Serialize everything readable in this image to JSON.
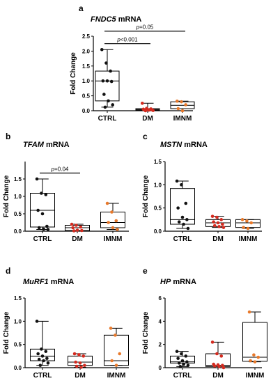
{
  "figure": {
    "panels": [
      {
        "letter": "a",
        "gene": "FNDC5",
        "suffix": " mRNA"
      },
      {
        "letter": "b",
        "gene": "TFAM",
        "suffix": " mRNA"
      },
      {
        "letter": "c",
        "gene": "MSTN",
        "suffix": " mRNA"
      },
      {
        "letter": "d",
        "gene": "MuRF1",
        "suffix": " mRNA"
      },
      {
        "letter": "e",
        "gene": "HP",
        "suffix": " mRNA"
      }
    ],
    "colors": {
      "CTRL": "#111111",
      "DM": "#d42a1f",
      "IMNM": "#e8792b"
    }
  },
  "chart_data": [
    {
      "type": "box",
      "title": "FNDC5 mRNA",
      "ylabel": "Fold Change",
      "categories": [
        "CTRL",
        "DM",
        "IMNM"
      ],
      "ylim": [
        0,
        2.5
      ],
      "yticks": [
        "0.0",
        "0.5",
        "1.0",
        "1.5",
        "2.0",
        "2.5"
      ],
      "series": [
        {
          "category": "CTRL",
          "min": 0.12,
          "q1": 0.33,
          "median": 1.0,
          "q3": 1.33,
          "max": 2.05,
          "points": [
            2.05,
            1.6,
            1.33,
            1.0,
            1.0,
            0.98,
            0.55,
            0.33,
            0.2,
            0.12
          ]
        },
        {
          "category": "DM",
          "min": 0.0,
          "q1": 0.02,
          "median": 0.04,
          "q3": 0.07,
          "max": 0.25,
          "points": [
            0.25,
            0.08,
            0.06,
            0.05,
            0.04,
            0.03,
            0.03,
            0.02,
            0.01,
            0.0
          ]
        },
        {
          "category": "IMNM",
          "min": 0.0,
          "q1": 0.07,
          "median": 0.18,
          "q3": 0.3,
          "max": 0.32,
          "points": [
            0.32,
            0.3,
            0.2,
            0.07,
            0.0
          ]
        }
      ],
      "brackets": [
        {
          "from": "CTRL",
          "to": "DM",
          "y": 2.25,
          "p": "p",
          "value": "<0.001"
        },
        {
          "from": "CTRL",
          "to": "IMNM",
          "y": 2.67,
          "p": "p",
          "value": "=0.05"
        }
      ]
    },
    {
      "type": "box",
      "title": "TFAM mRNA",
      "ylabel": "Fold Change",
      "categories": [
        "CTRL",
        "DM",
        "IMNM"
      ],
      "ylim": [
        0,
        2.0
      ],
      "yticks": [
        "0.0",
        "0.5",
        "1.0",
        "1.5"
      ],
      "series": [
        {
          "category": "CTRL",
          "min": 0.05,
          "q1": 0.12,
          "median": 0.6,
          "q3": 1.09,
          "max": 1.5,
          "points": [
            1.5,
            1.09,
            1.05,
            0.6,
            0.5,
            0.14,
            0.1,
            0.06,
            0.05
          ]
        },
        {
          "category": "DM",
          "min": 0.01,
          "q1": 0.02,
          "median": 0.1,
          "q3": 0.17,
          "max": 0.2,
          "points": [
            0.2,
            0.17,
            0.12,
            0.1,
            0.03,
            0.02,
            0.01
          ]
        },
        {
          "category": "IMNM",
          "min": 0.05,
          "q1": 0.1,
          "median": 0.25,
          "q3": 0.55,
          "max": 0.8,
          "points": [
            0.8,
            0.55,
            0.3,
            0.25,
            0.1,
            0.05
          ]
        }
      ],
      "brackets": [
        {
          "from": "CTRL",
          "to": "DM",
          "y": 1.67,
          "p": "p",
          "value": "=0.04"
        }
      ]
    },
    {
      "type": "box",
      "title": "MSTN mRNA",
      "ylabel": "Fold Change",
      "categories": [
        "CTRL",
        "DM",
        "IMNM"
      ],
      "ylim": [
        0,
        1.5
      ],
      "yticks": [
        "0.0",
        "0.5",
        "1.0",
        "1.5"
      ],
      "series": [
        {
          "category": "CTRL",
          "min": 0.06,
          "q1": 0.15,
          "median": 0.25,
          "q3": 0.92,
          "max": 1.08,
          "points": [
            1.08,
            1.0,
            0.6,
            0.5,
            0.3,
            0.25,
            0.2,
            0.15,
            0.06
          ]
        },
        {
          "category": "DM",
          "min": 0.08,
          "q1": 0.1,
          "median": 0.18,
          "q3": 0.25,
          "max": 0.32,
          "points": [
            0.32,
            0.3,
            0.25,
            0.2,
            0.18,
            0.15,
            0.12,
            0.1,
            0.08
          ]
        },
        {
          "category": "IMNM",
          "min": 0.06,
          "q1": 0.08,
          "median": 0.18,
          "q3": 0.25,
          "max": 0.25,
          "points": [
            0.25,
            0.22,
            0.18,
            0.08,
            0.06
          ]
        }
      ]
    },
    {
      "type": "box",
      "title": "MuRF1 mRNA",
      "ylabel": "Fold Change",
      "categories": [
        "CTRL",
        "DM",
        "IMNM"
      ],
      "ylim": [
        0,
        1.5
      ],
      "yticks": [
        "0.0",
        "0.5",
        "1.0",
        "1.5"
      ],
      "series": [
        {
          "category": "CTRL",
          "min": 0.05,
          "q1": 0.15,
          "median": 0.25,
          "q3": 0.4,
          "max": 1.0,
          "points": [
            1.0,
            0.4,
            0.35,
            0.3,
            0.25,
            0.2,
            0.18,
            0.15,
            0.1,
            0.05
          ]
        },
        {
          "category": "DM",
          "min": 0.01,
          "q1": 0.05,
          "median": 0.12,
          "q3": 0.25,
          "max": 0.3,
          "points": [
            0.3,
            0.28,
            0.25,
            0.12,
            0.1,
            0.05,
            0.03,
            0.01
          ]
        },
        {
          "category": "IMNM",
          "min": 0.05,
          "q1": 0.05,
          "median": 0.15,
          "q3": 0.7,
          "max": 0.85,
          "points": [
            0.85,
            0.7,
            0.3,
            0.15,
            0.05
          ]
        }
      ]
    },
    {
      "type": "box",
      "title": "HP mRNA",
      "ylabel": "Fold Change",
      "categories": [
        "CTRL",
        "DM",
        "IMNM"
      ],
      "ylim": [
        0,
        6
      ],
      "yticks": [
        "0",
        "2",
        "4",
        "6"
      ],
      "series": [
        {
          "category": "CTRL",
          "min": 0.1,
          "q1": 0.4,
          "median": 0.5,
          "q3": 1.0,
          "max": 1.4,
          "points": [
            1.4,
            1.2,
            1.0,
            0.8,
            0.6,
            0.5,
            0.4,
            0.3,
            0.2,
            0.1
          ]
        },
        {
          "category": "DM",
          "min": 0.0,
          "q1": 0.1,
          "median": 0.2,
          "q3": 1.2,
          "max": 2.2,
          "points": [
            2.2,
            1.2,
            1.0,
            0.3,
            0.25,
            0.2,
            0.15,
            0.1,
            0.0
          ]
        },
        {
          "category": "IMNM",
          "min": 0.5,
          "q1": 0.55,
          "median": 0.9,
          "q3": 3.9,
          "max": 4.8,
          "points": [
            4.8,
            1.1,
            0.9,
            0.6,
            0.5
          ]
        }
      ]
    }
  ]
}
